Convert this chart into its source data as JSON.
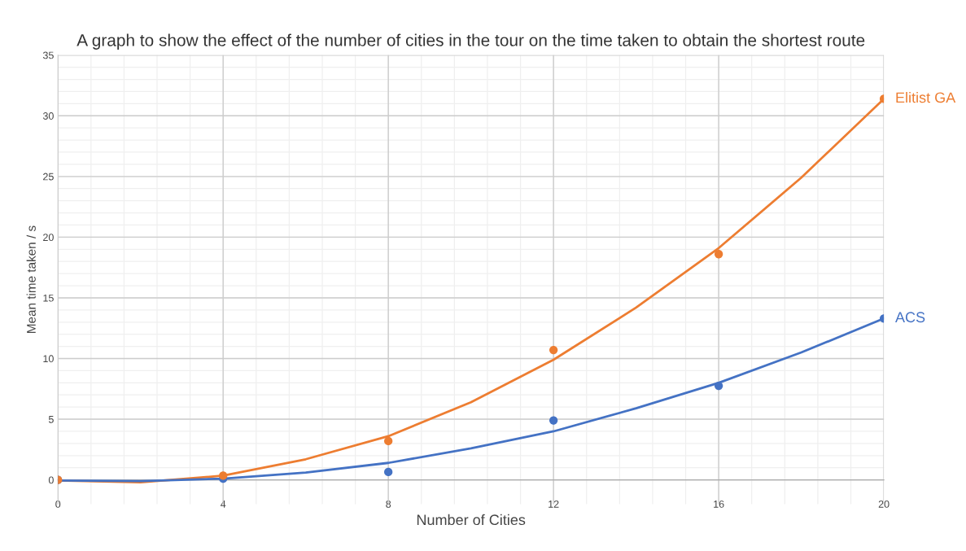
{
  "chart_data": {
    "type": "scatter",
    "title": "A graph to show the effect of the number of cities in the tour on the time taken to obtain the shortest route",
    "xlabel": "Number of Cities",
    "ylabel": "Mean time taken / s",
    "x": [
      0,
      4,
      8,
      12,
      16,
      20
    ],
    "series": [
      {
        "name": "Elitist GA",
        "color": "#ed7d31",
        "marker": "circle",
        "values": [
          0,
          0.35,
          3.2,
          10.7,
          18.6,
          31.4
        ]
      },
      {
        "name": "ACS",
        "color": "#4472c4",
        "marker": "circle",
        "values": [
          0,
          0.1,
          0.65,
          4.9,
          7.75,
          13.3
        ]
      },
      {
        "type": "line",
        "color": "#ed7d31",
        "x": [
          0,
          2,
          4,
          6,
          8,
          10,
          12,
          14,
          16,
          18,
          20
        ],
        "values": [
          -0.05,
          -0.2,
          0.35,
          1.7,
          3.6,
          6.4,
          9.9,
          14.2,
          19.1,
          24.9,
          31.4
        ]
      },
      {
        "type": "line",
        "color": "#4472c4",
        "x": [
          0,
          2,
          4,
          6,
          8,
          10,
          12,
          14,
          16,
          18,
          20
        ],
        "values": [
          -0.05,
          -0.1,
          0.1,
          0.6,
          1.4,
          2.6,
          4.0,
          5.9,
          8.0,
          10.5,
          13.3
        ]
      }
    ],
    "xlim": [
      0,
      20
    ],
    "xticks": [
      0,
      4,
      8,
      12,
      16,
      20
    ],
    "ylim": [
      -2,
      35
    ],
    "yticks": [
      0,
      5,
      10,
      15,
      20,
      25,
      30,
      35
    ],
    "grid": true,
    "legend": false
  }
}
